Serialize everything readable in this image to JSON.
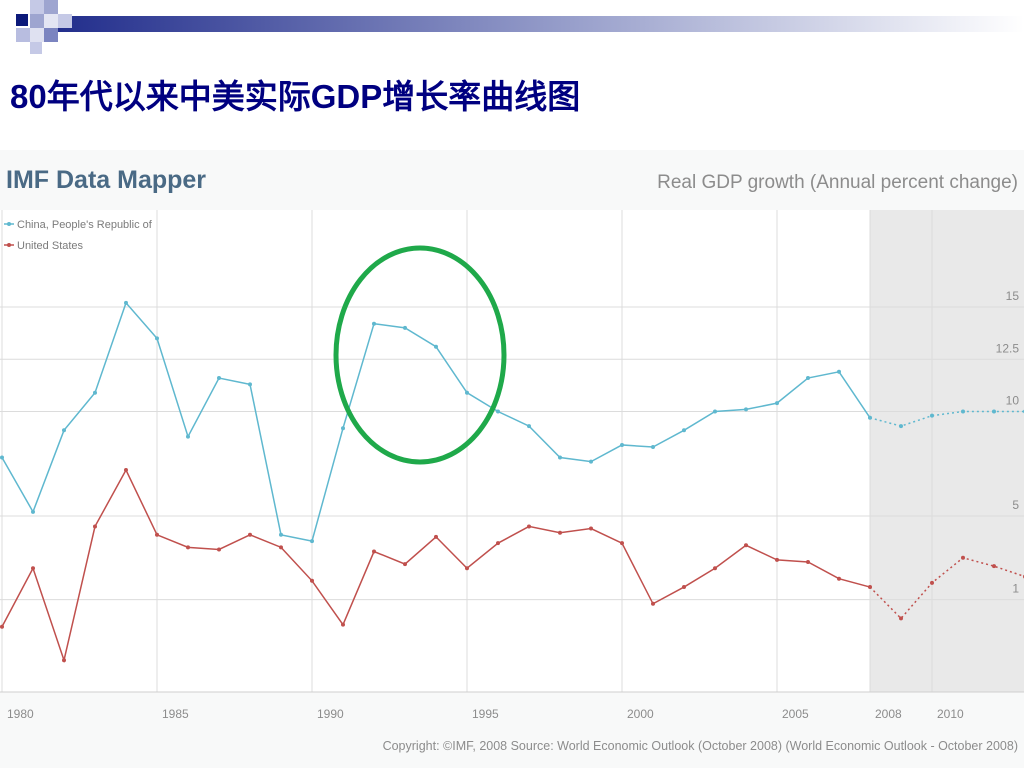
{
  "slide": {
    "title": "80年代以来中美实际GDP增长率曲线图"
  },
  "chart_data": {
    "type": "line",
    "brand": "IMF Data Mapper",
    "title": "Real GDP growth (Annual percent change)",
    "copyright": "Copyright: ©IMF, 2008 Source: World Economic Outlook (October 2008) (World Economic Outlook - October 2008)",
    "x": [
      1980,
      1981,
      1982,
      1983,
      1984,
      1985,
      1986,
      1987,
      1988,
      1989,
      1990,
      1991,
      1992,
      1993,
      1994,
      1995,
      1996,
      1997,
      1998,
      1999,
      2000,
      2001,
      2002,
      2003,
      2004,
      2005,
      2006,
      2007,
      2008,
      2009,
      2010,
      2011,
      2012,
      2013
    ],
    "xlim": [
      1980,
      2013
    ],
    "x_ticks": [
      1980,
      1985,
      1990,
      1995,
      2000,
      2005,
      2008,
      2010
    ],
    "y_ticks": [
      1,
      5,
      10,
      12.5,
      15
    ],
    "forecast_start": 2008,
    "forecast_region": [
      2008,
      2013
    ],
    "grid": true,
    "legend_position": "top-left",
    "series": [
      {
        "name": "China, People's Republic of",
        "color": "#5fb8cf",
        "values": [
          7.8,
          5.2,
          9.1,
          10.9,
          15.2,
          13.5,
          8.8,
          11.6,
          11.3,
          4.1,
          3.8,
          9.2,
          14.2,
          14.0,
          13.1,
          10.9,
          10.0,
          9.3,
          7.8,
          7.6,
          8.4,
          8.3,
          9.1,
          10.0,
          10.1,
          10.4,
          11.6,
          11.9,
          9.7,
          9.3,
          9.8,
          10.0,
          10.0,
          10.0
        ],
        "forecast_from_index": 28
      },
      {
        "name": "United States",
        "color": "#c0504d",
        "values": [
          -0.3,
          2.5,
          -1.9,
          4.5,
          7.2,
          4.1,
          3.5,
          3.4,
          4.1,
          3.5,
          1.9,
          -0.2,
          3.3,
          2.7,
          4.0,
          2.5,
          3.7,
          4.5,
          4.2,
          4.4,
          3.7,
          0.8,
          1.6,
          2.5,
          3.6,
          2.9,
          2.8,
          2.0,
          1.6,
          0.1,
          1.8,
          3.0,
          2.6,
          2.1
        ],
        "forecast_from_index": 28
      }
    ]
  },
  "annotation": {
    "shape": "ellipse",
    "color": "#1fa94a"
  }
}
